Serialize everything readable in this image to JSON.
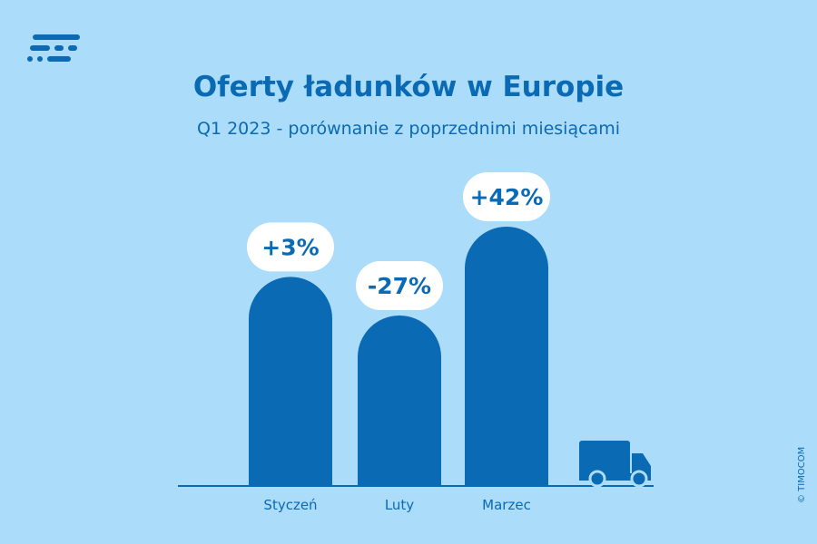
{
  "header": {
    "title": "Oferty ładunków w Europie",
    "subtitle": "Q1 2023 - porównanie z poprzednimi miesiącami"
  },
  "logo": {
    "icon": "timocom-logo-icon"
  },
  "chart_data": {
    "type": "bar",
    "categories": [
      "Styczeń",
      "Luty",
      "Marzec"
    ],
    "values": [
      3,
      -27,
      42
    ],
    "value_labels": [
      "+3%",
      "-27%",
      "+42%"
    ],
    "unit": "%",
    "grid": false,
    "decoration": "truck-icon"
  },
  "footer": {
    "copyright": "© TIMOCOM"
  },
  "colors": {
    "background": "#abdcf9",
    "bar": "#0a6ab4",
    "label_bubble": "#ffffff",
    "text": "#0a6ab4"
  }
}
